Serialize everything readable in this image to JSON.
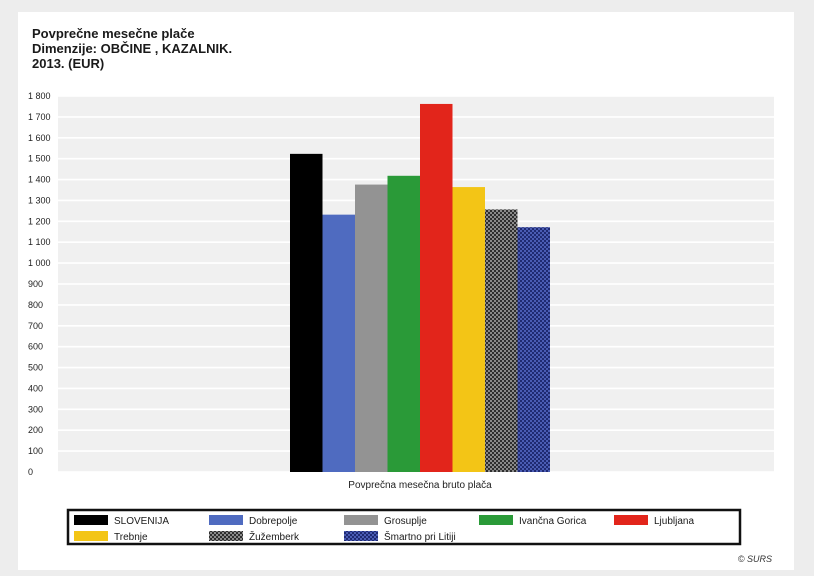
{
  "chart_data": {
    "type": "bar",
    "title_lines": [
      "Povprečne mesečne plače",
      "Dimenzije: OBČINE , KAZALNIK.",
      "2013. (EUR)"
    ],
    "categories": [
      "Povprečna mesečna bruto plača"
    ],
    "ylim": [
      0,
      1800
    ],
    "yticks": [
      "0",
      "100",
      "200",
      "300",
      "400",
      "500",
      "600",
      "700",
      "800",
      "900",
      "1 000",
      "1 100",
      "1 200",
      "1 300",
      "1 400",
      "1 500",
      "1 600",
      "1 700",
      "1 800"
    ],
    "grid": true,
    "legend_position": "bottom",
    "series": [
      {
        "name": "SLOVENIJA",
        "values": [
          1523
        ],
        "color": "#000000",
        "pattern": "solid"
      },
      {
        "name": "Dobrepolje",
        "values": [
          1232
        ],
        "color": "#4f6bc0",
        "pattern": "solid"
      },
      {
        "name": "Grosuplje",
        "values": [
          1376
        ],
        "color": "#939393",
        "pattern": "solid"
      },
      {
        "name": "Ivančna Gorica",
        "values": [
          1418
        ],
        "color": "#2a9a38",
        "pattern": "solid"
      },
      {
        "name": "Ljubljana",
        "values": [
          1762
        ],
        "color": "#e2251b",
        "pattern": "solid"
      },
      {
        "name": "Trebnje",
        "values": [
          1364
        ],
        "color": "#f3c516",
        "pattern": "solid"
      },
      {
        "name": "Žužemberk",
        "values": [
          1257
        ],
        "color": "#3a3a3a",
        "pattern": "checker"
      },
      {
        "name": "Šmartno pri Litiji",
        "values": [
          1172
        ],
        "color": "#2b3a8c",
        "pattern": "checker"
      }
    ]
  },
  "footer": {
    "copyright": "© SURS"
  }
}
